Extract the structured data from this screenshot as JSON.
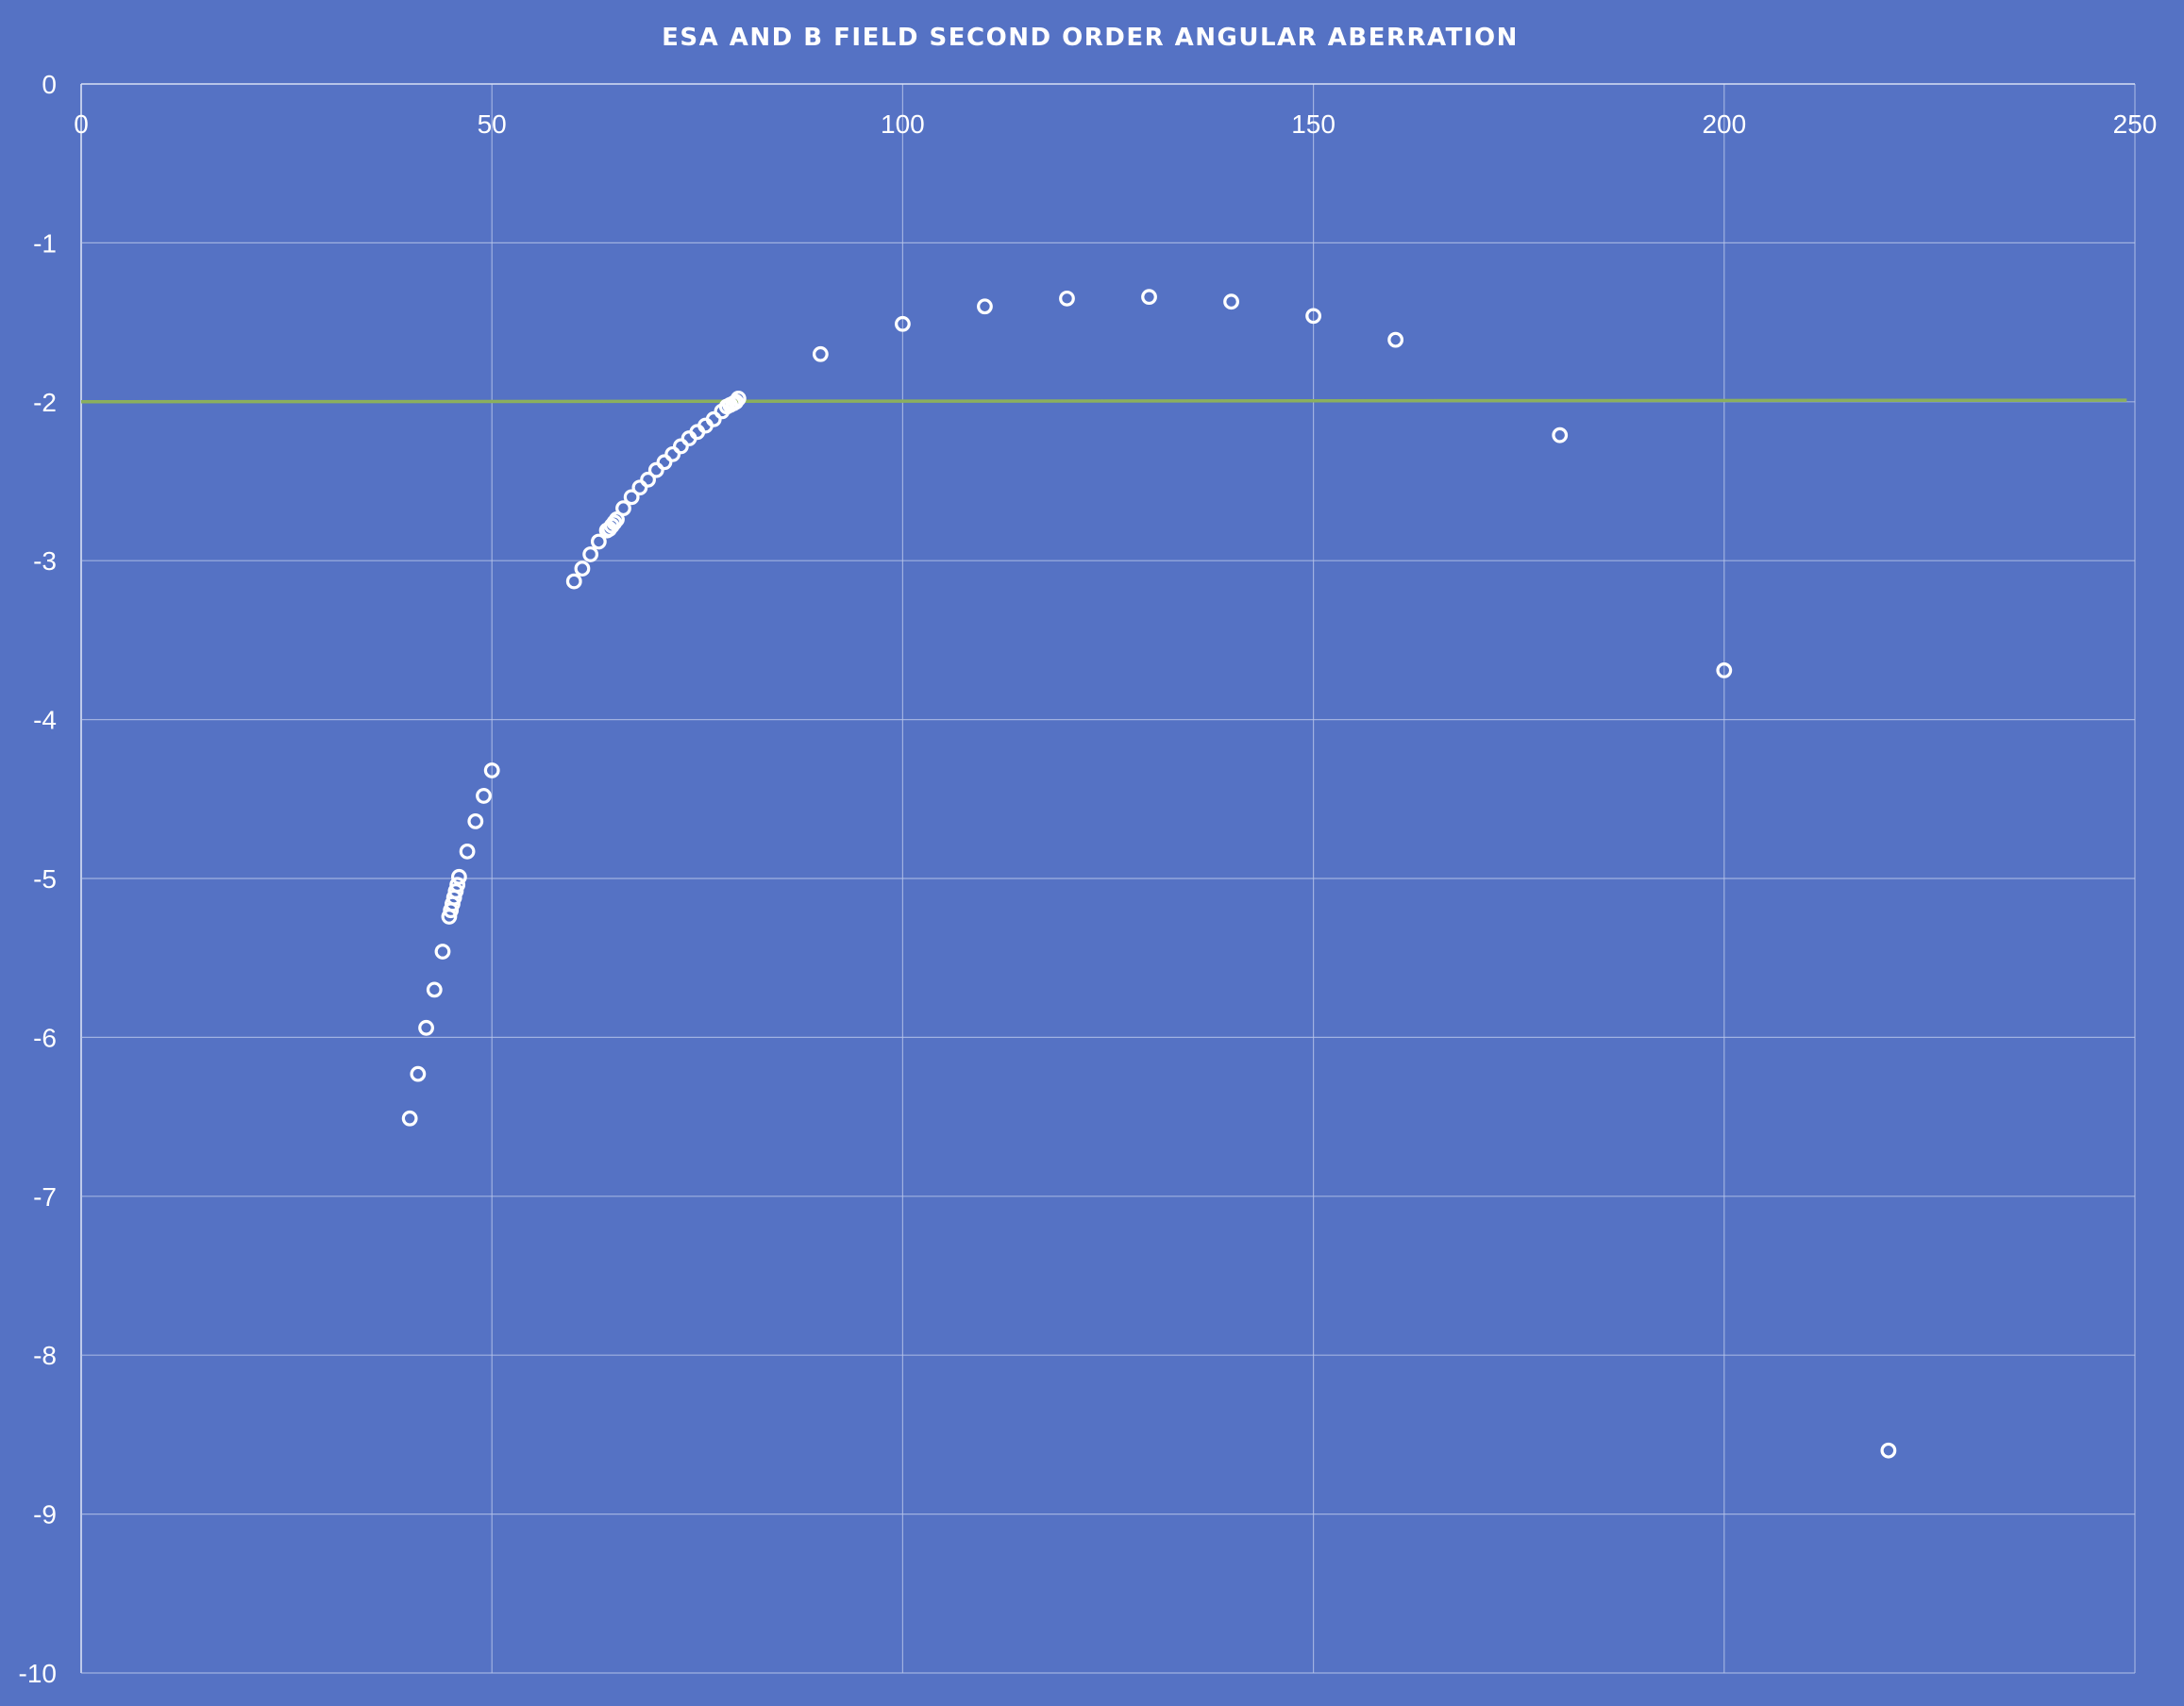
{
  "chart_data": {
    "type": "scatter",
    "title": "ESA AND B FIELD SECOND ORDER  ANGULAR ABERRATION",
    "xlabel": "",
    "ylabel": "",
    "xlim": [
      0,
      250
    ],
    "ylim": [
      -10,
      0
    ],
    "x_ticks": [
      0,
      50,
      100,
      150,
      200,
      250
    ],
    "y_ticks": [
      0,
      -1,
      -2,
      -3,
      -4,
      -5,
      -6,
      -7,
      -8,
      -9,
      -10
    ],
    "x_tick_labels_position": "top",
    "grid": true,
    "legend": "none",
    "colors": {
      "background": "#5572C4",
      "points": "#FFFFFF",
      "reference_line": "#8BAF5E",
      "grid": "#B9C6EA"
    },
    "series": [
      {
        "marker": "open-circle",
        "points": [
          [
            40,
            -6.51
          ],
          [
            41,
            -6.23
          ],
          [
            42,
            -5.94
          ],
          [
            43,
            -5.7
          ],
          [
            44,
            -5.46
          ],
          [
            44.8,
            -5.24
          ],
          [
            45,
            -5.2
          ],
          [
            45.2,
            -5.16
          ],
          [
            45.4,
            -5.12
          ],
          [
            45.6,
            -5.08
          ],
          [
            45.8,
            -5.04
          ],
          [
            46,
            -4.99
          ],
          [
            47,
            -4.83
          ],
          [
            48,
            -4.64
          ],
          [
            49,
            -4.48
          ],
          [
            50,
            -4.32
          ],
          [
            60,
            -3.13
          ],
          [
            61,
            -3.05
          ],
          [
            62,
            -2.96
          ],
          [
            63,
            -2.88
          ],
          [
            64,
            -2.81
          ],
          [
            64.3,
            -2.8
          ],
          [
            64.6,
            -2.78
          ],
          [
            64.9,
            -2.76
          ],
          [
            65.2,
            -2.74
          ],
          [
            66,
            -2.67
          ],
          [
            67,
            -2.6
          ],
          [
            68,
            -2.54
          ],
          [
            69,
            -2.49
          ],
          [
            70,
            -2.43
          ],
          [
            71,
            -2.38
          ],
          [
            72,
            -2.33
          ],
          [
            73,
            -2.28
          ],
          [
            74,
            -2.23
          ],
          [
            75,
            -2.19
          ],
          [
            76,
            -2.15
          ],
          [
            77,
            -2.11
          ],
          [
            78,
            -2.06
          ],
          [
            78.6,
            -2.03
          ],
          [
            79,
            -2.02
          ],
          [
            79.4,
            -2.01
          ],
          [
            79.7,
            -2.0
          ],
          [
            80,
            -1.98
          ],
          [
            90,
            -1.7
          ],
          [
            100,
            -1.51
          ],
          [
            110,
            -1.4
          ],
          [
            120,
            -1.35
          ],
          [
            130,
            -1.34
          ],
          [
            140,
            -1.37
          ],
          [
            150,
            -1.46
          ],
          [
            160,
            -1.61
          ],
          [
            180,
            -2.21
          ],
          [
            200,
            -3.69
          ],
          [
            220,
            -8.6
          ]
        ]
      },
      {
        "type": "line",
        "points": [
          [
            0,
            -2.0
          ],
          [
            249,
            -1.99
          ]
        ]
      }
    ]
  }
}
